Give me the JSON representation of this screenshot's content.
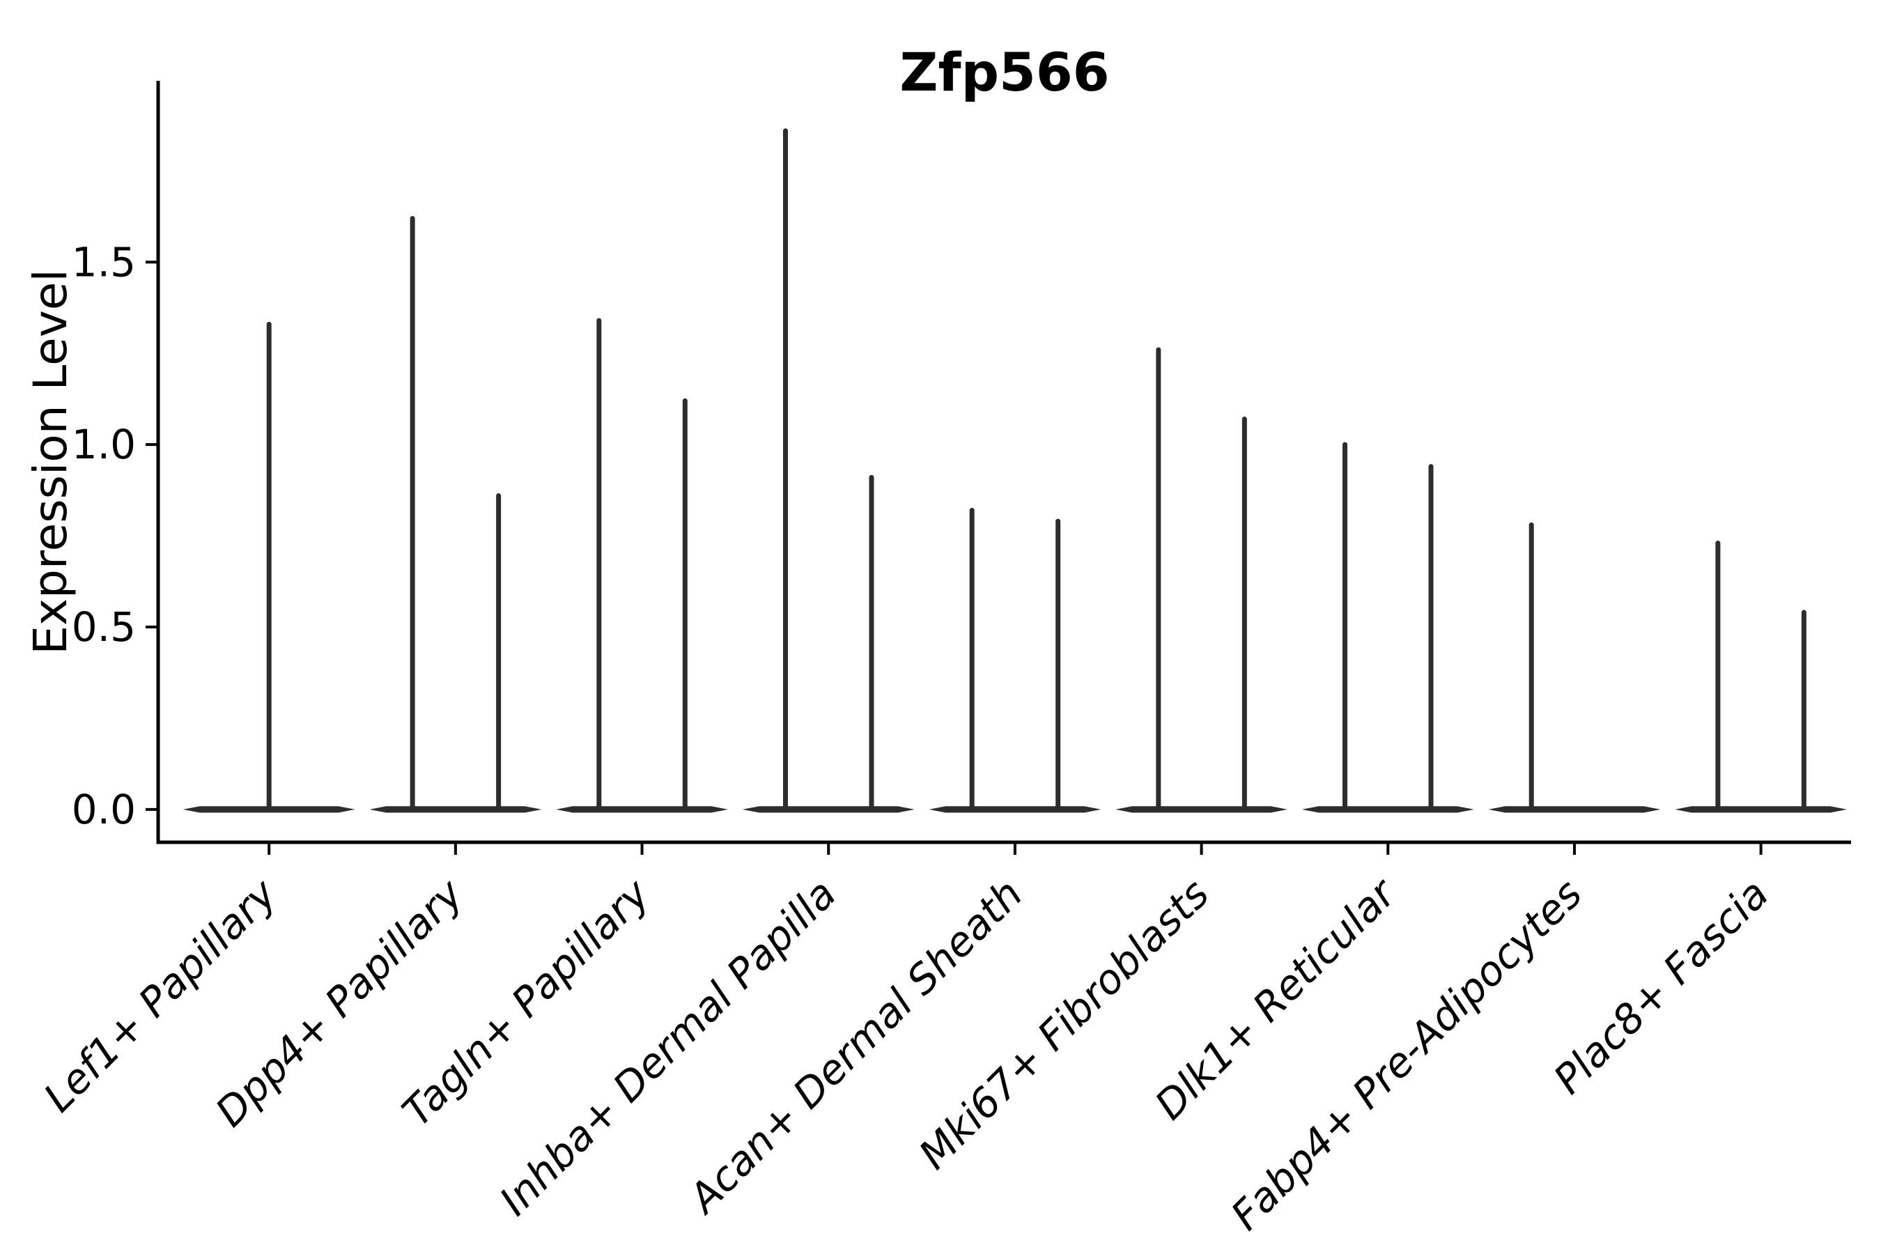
{
  "figure": {
    "title": "Zfp566",
    "background": "#ffffff"
  },
  "y_axis": {
    "label": "Expression Level",
    "tick_labels": [
      "0.0",
      "0.5",
      "1.0",
      "1.5"
    ]
  },
  "x_axis": {
    "label": "",
    "tick_labels": [
      "Lef1+ Papillary",
      "Dpp4+ Papillary",
      "Tagln+ Papillary",
      "Inhba+ Dermal Papilla",
      "Acan+ Dermal Sheath",
      "Mki67+ Fibroblasts",
      "Dlk1+ Reticular",
      "Fabp4+ Pre-Adipocytes",
      "Plac8+ Fascia"
    ]
  },
  "colors": {
    "violin": "#2d2d2d",
    "axis": "#000000",
    "text": "#000000",
    "background": "#ffffff"
  },
  "chart_data": {
    "type": "violin",
    "title": "Zfp566",
    "xlabel": "",
    "ylabel": "Expression Level",
    "ylim": [
      -0.09,
      1.997
    ],
    "yticks": [
      0.0,
      0.5,
      1.0,
      1.5
    ],
    "ytick_labels": [
      "0.0",
      "0.5",
      "1.0",
      "1.5"
    ],
    "grid": false,
    "legend": "none",
    "note": "Violin bodies are collapsed into a thin horizontal bar at expression 0 for every group; each violin shows only a narrow vertical tail reaching its maximum expression value. Most groups contain two half-position violins; Lef1+ Papillary has a single centered violin and Fabp4+ Pre-Adipocytes has only a left-position violin.",
    "categories": [
      "Lef1+ Papillary",
      "Dpp4+ Papillary",
      "Tagln+ Papillary",
      "Inhba+ Dermal Papilla",
      "Acan+ Dermal Sheath",
      "Mki67+ Fibroblasts",
      "Dlk1+ Reticular",
      "Fabp4+ Pre-Adipocytes",
      "Plac8+ Fascia"
    ],
    "groups": [
      {
        "category": "Lef1+ Papillary",
        "violins": [
          {
            "side": "center",
            "max": 1.33
          }
        ]
      },
      {
        "category": "Dpp4+ Papillary",
        "violins": [
          {
            "side": "left",
            "max": 1.62
          },
          {
            "side": "right",
            "max": 0.86
          }
        ]
      },
      {
        "category": "Tagln+ Papillary",
        "violins": [
          {
            "side": "left",
            "max": 1.34
          },
          {
            "side": "right",
            "max": 1.12
          }
        ]
      },
      {
        "category": "Inhba+ Dermal Papilla",
        "violins": [
          {
            "side": "left",
            "max": 1.86
          },
          {
            "side": "right",
            "max": 0.91
          }
        ]
      },
      {
        "category": "Acan+ Dermal Sheath",
        "violins": [
          {
            "side": "left",
            "max": 0.82
          },
          {
            "side": "right",
            "max": 0.79
          }
        ]
      },
      {
        "category": "Mki67+ Fibroblasts",
        "violins": [
          {
            "side": "left",
            "max": 1.26
          },
          {
            "side": "right",
            "max": 1.07
          }
        ]
      },
      {
        "category": "Dlk1+ Reticular",
        "violins": [
          {
            "side": "left",
            "max": 1.0
          },
          {
            "side": "right",
            "max": 0.94
          }
        ]
      },
      {
        "category": "Fabp4+ Pre-Adipocytes",
        "violins": [
          {
            "side": "left",
            "max": 0.78
          }
        ]
      },
      {
        "category": "Plac8+ Fascia",
        "violins": [
          {
            "side": "left",
            "max": 0.73
          },
          {
            "side": "right",
            "max": 0.54
          }
        ]
      }
    ]
  }
}
